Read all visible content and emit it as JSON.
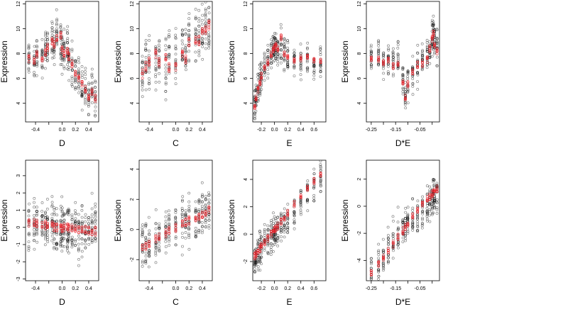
{
  "colors": {
    "observed": "#000000",
    "fitted": "#e8242c",
    "frame": "#000000"
  },
  "chart_data": [
    {
      "type": "scatter",
      "xlabel": "D",
      "ylabel": "Expression",
      "xlim": [
        -0.55,
        0.55
      ],
      "ylim": [
        2.5,
        12.2
      ],
      "xticks": [
        -0.4,
        -0.2,
        0.0,
        0.2,
        0.4
      ],
      "xtick_labels": [
        "-0.4",
        "",
        "0.0",
        "0.2",
        "0.4"
      ],
      "yticks": [
        4,
        6,
        8,
        10,
        12
      ],
      "ytick_labels": [
        "4",
        "6",
        "8",
        "10",
        "12"
      ],
      "x_levels": [
        -0.5,
        -0.42,
        -0.38,
        -0.3,
        -0.25,
        -0.22,
        -0.15,
        -0.12,
        -0.08,
        -0.02,
        0.0,
        0.03,
        0.08,
        0.1,
        0.15,
        0.2,
        0.25,
        0.3,
        0.35,
        0.4,
        0.45,
        0.5
      ],
      "y_centers": [
        7.5,
        7.3,
        8.0,
        7.6,
        8.2,
        8.8,
        9.2,
        8.6,
        9.4,
        8.8,
        8.4,
        8.2,
        8.6,
        7.6,
        7.0,
        6.4,
        6.2,
        5.4,
        5.0,
        4.2,
        5.2,
        4.6
      ],
      "y_spread": 1.1,
      "fitted_y": [
        7.6,
        7.4,
        7.9,
        7.5,
        8.1,
        8.5,
        9.0,
        8.7,
        9.3,
        9.5,
        8.3,
        8.0,
        8.3,
        7.8,
        7.2,
        6.4,
        6.0,
        5.5,
        5.1,
        4.5,
        4.9,
        4.4
      ]
    },
    {
      "type": "scatter",
      "xlabel": "C",
      "ylabel": "Expression",
      "xlim": [
        -0.55,
        0.55
      ],
      "ylim": [
        2.5,
        12.2
      ],
      "xticks": [
        -0.4,
        -0.2,
        0.0,
        0.2,
        0.4
      ],
      "xtick_labels": [
        "-0.4",
        "",
        "0.0",
        "0.2",
        "0.4"
      ],
      "yticks": [
        4,
        6,
        8,
        10,
        12
      ],
      "ytick_labels": [
        "4",
        "6",
        "8",
        "10",
        "12"
      ],
      "x_levels": [
        -0.5,
        -0.45,
        -0.4,
        -0.3,
        -0.25,
        -0.15,
        -0.1,
        0.0,
        0.1,
        0.15,
        0.2,
        0.3,
        0.35,
        0.4,
        0.45,
        0.5
      ],
      "y_centers": [
        6.6,
        7.0,
        7.2,
        7.4,
        7.6,
        7.0,
        8.0,
        7.6,
        8.2,
        7.8,
        8.8,
        9.0,
        9.2,
        9.6,
        9.8,
        10.2
      ],
      "y_spread": 1.6,
      "fitted_y": [
        6.4,
        6.9,
        7.4,
        8.0,
        7.2,
        7.6,
        6.8,
        7.0,
        8.0,
        7.6,
        8.9,
        9.2,
        9.0,
        9.8,
        10.0,
        10.3
      ]
    },
    {
      "type": "scatter",
      "xlabel": "E",
      "ylabel": "Expression",
      "xlim": [
        -0.33,
        0.78
      ],
      "ylim": [
        2.5,
        12.2
      ],
      "xticks": [
        -0.2,
        0.0,
        0.2,
        0.4,
        0.6
      ],
      "xtick_labels": [
        "-0.2",
        "0.0",
        "0.2",
        "0.4",
        "0.6"
      ],
      "yticks": [
        4,
        6,
        8,
        10,
        12
      ],
      "ytick_labels": [
        "4",
        "6",
        "8",
        "10",
        "12"
      ],
      "x_levels": [
        -0.3,
        -0.28,
        -0.25,
        -0.22,
        -0.2,
        -0.15,
        -0.1,
        -0.05,
        -0.02,
        0.0,
        0.02,
        0.05,
        0.1,
        0.15,
        0.2,
        0.3,
        0.4,
        0.5,
        0.6,
        0.7
      ],
      "y_centers": [
        3.8,
        4.6,
        5.2,
        5.8,
        6.3,
        6.9,
        7.4,
        8.0,
        8.4,
        8.6,
        8.7,
        8.4,
        8.8,
        8.0,
        7.8,
        7.4,
        7.2,
        7.5,
        7.2,
        7.4
      ],
      "y_spread": 0.9,
      "fitted_y": [
        3.7,
        4.4,
        5.1,
        5.7,
        6.2,
        6.8,
        7.3,
        7.9,
        8.3,
        8.5,
        8.7,
        8.4,
        9.3,
        8.0,
        7.7,
        7.4,
        7.6,
        7.7,
        7.4,
        7.5
      ]
    },
    {
      "type": "scatter",
      "xlabel": "D*E",
      "ylabel": "Expression",
      "xlim": [
        -0.27,
        0.03
      ],
      "ylim": [
        2.5,
        12.2
      ],
      "xticks": [
        -0.25,
        -0.2,
        -0.15,
        -0.1,
        -0.05,
        0.0
      ],
      "xtick_labels": [
        "-0.25",
        "",
        "-0.15",
        "",
        "-0.05",
        ""
      ],
      "yticks": [
        4,
        6,
        8,
        10,
        12
      ],
      "ytick_labels": [
        "4",
        "6",
        "8",
        "10",
        "12"
      ],
      "x_levels": [
        -0.25,
        -0.22,
        -0.2,
        -0.18,
        -0.16,
        -0.14,
        -0.12,
        -0.11,
        -0.1,
        -0.08,
        -0.06,
        -0.04,
        -0.02,
        -0.01,
        0.0,
        0.005,
        0.01,
        0.02
      ],
      "y_centers": [
        7.6,
        7.8,
        7.4,
        7.6,
        7.2,
        7.6,
        6.0,
        4.6,
        5.8,
        6.4,
        7.0,
        7.4,
        7.8,
        8.6,
        9.4,
        9.8,
        9.0,
        8.6
      ],
      "y_spread": 1.0,
      "fitted_y": [
        7.5,
        7.6,
        7.2,
        7.4,
        7.0,
        7.2,
        5.6,
        4.5,
        5.5,
        6.5,
        7.1,
        7.2,
        7.5,
        8.4,
        9.2,
        9.6,
        8.8,
        8.2
      ]
    },
    {
      "type": "scatter",
      "xlabel": "D",
      "ylabel": "Expression",
      "xlim": [
        -0.55,
        0.55
      ],
      "ylim": [
        -3.1,
        3.9
      ],
      "xticks": [
        -0.4,
        -0.2,
        0.0,
        0.2,
        0.4
      ],
      "xtick_labels": [
        "-0.4",
        "",
        "0.0",
        "0.2",
        "0.4"
      ],
      "yticks": [
        -3,
        -2,
        -1,
        0,
        1,
        2,
        3
      ],
      "ytick_labels": [
        "-3",
        "-2",
        "-1",
        "0",
        "1",
        "2",
        "3"
      ],
      "x_levels": [
        -0.5,
        -0.42,
        -0.38,
        -0.3,
        -0.25,
        -0.22,
        -0.15,
        -0.12,
        -0.08,
        -0.02,
        0.0,
        0.03,
        0.08,
        0.1,
        0.15,
        0.2,
        0.25,
        0.3,
        0.35,
        0.4,
        0.45,
        0.5
      ],
      "y_centers": [
        0.2,
        0.1,
        0.3,
        0.0,
        0.2,
        0.1,
        0.2,
        0.0,
        0.1,
        -0.1,
        0.0,
        0.1,
        -0.1,
        0.0,
        -0.2,
        -0.1,
        -0.3,
        0.0,
        -0.4,
        -0.2,
        0.0,
        -0.1
      ],
      "y_spread": 1.0,
      "fitted_y": [
        0.3,
        0.25,
        0.22,
        0.18,
        0.15,
        0.12,
        0.08,
        0.05,
        0.02,
        0.0,
        -0.02,
        -0.03,
        -0.05,
        -0.06,
        -0.08,
        -0.1,
        -0.12,
        -0.14,
        -0.16,
        -0.18,
        -0.2,
        -0.22
      ]
    },
    {
      "type": "scatter",
      "xlabel": "C",
      "ylabel": "Expression",
      "xlim": [
        -0.55,
        0.55
      ],
      "ylim": [
        -3.4,
        4.6
      ],
      "xticks": [
        -0.4,
        -0.2,
        0.0,
        0.2,
        0.4
      ],
      "xtick_labels": [
        "-0.4",
        "",
        "0.0",
        "0.2",
        "0.4"
      ],
      "yticks": [
        -2,
        0,
        2,
        4
      ],
      "ytick_labels": [
        "-2",
        "0",
        "2",
        "4"
      ],
      "x_levels": [
        -0.5,
        -0.45,
        -0.4,
        -0.3,
        -0.25,
        -0.15,
        -0.1,
        0.0,
        0.1,
        0.15,
        0.2,
        0.3,
        0.35,
        0.4,
        0.45,
        0.5
      ],
      "y_centers": [
        -1.2,
        -1.0,
        -0.8,
        -0.6,
        -0.4,
        -0.2,
        0.0,
        0.2,
        0.4,
        0.5,
        0.6,
        0.9,
        1.0,
        1.2,
        1.3,
        1.4
      ],
      "y_spread": 1.1,
      "fitted_y": [
        -1.2,
        -1.05,
        -0.9,
        -0.65,
        -0.5,
        -0.25,
        -0.12,
        0.1,
        0.35,
        0.45,
        0.6,
        0.8,
        0.9,
        1.0,
        1.1,
        1.25
      ]
    },
    {
      "type": "scatter",
      "xlabel": "E",
      "ylabel": "Expression",
      "xlim": [
        -0.33,
        0.78
      ],
      "ylim": [
        -3.4,
        5.4
      ],
      "xticks": [
        -0.2,
        0.0,
        0.2,
        0.4,
        0.6
      ],
      "xtick_labels": [
        "-0.2",
        "0.0",
        "0.2",
        "0.4",
        "0.6"
      ],
      "yticks": [
        -2,
        0,
        2,
        4
      ],
      "ytick_labels": [
        "-2",
        "0",
        "2",
        "4"
      ],
      "x_levels": [
        -0.3,
        -0.28,
        -0.25,
        -0.22,
        -0.2,
        -0.15,
        -0.1,
        -0.05,
        -0.02,
        0.0,
        0.02,
        0.05,
        0.1,
        0.15,
        0.2,
        0.3,
        0.4,
        0.5,
        0.6,
        0.7
      ],
      "y_centers": [
        -2.2,
        -1.6,
        -1.4,
        -1.0,
        -0.8,
        -0.6,
        -0.4,
        -0.2,
        0.0,
        0.1,
        0.2,
        0.3,
        0.6,
        0.9,
        1.2,
        1.8,
        2.4,
        3.0,
        3.6,
        4.2
      ],
      "y_spread": 0.9,
      "fitted_y": [
        -1.6,
        -1.45,
        -1.25,
        -1.05,
        -0.9,
        -0.6,
        -0.3,
        0.0,
        0.2,
        0.3,
        0.45,
        0.6,
        0.95,
        1.25,
        1.55,
        2.15,
        2.75,
        3.35,
        3.9,
        4.4
      ]
    },
    {
      "type": "scatter",
      "xlabel": "D*E",
      "ylabel": "Expression",
      "xlim": [
        -0.27,
        0.03
      ],
      "ylim": [
        -5.5,
        3.4
      ],
      "xticks": [
        -0.25,
        -0.2,
        -0.15,
        -0.1,
        -0.05,
        0.0
      ],
      "xtick_labels": [
        "-0.25",
        "",
        "-0.15",
        "",
        "-0.05",
        ""
      ],
      "yticks": [
        -4,
        -2,
        0,
        2
      ],
      "ytick_labels": [
        "-4",
        "-2",
        "0",
        "2"
      ],
      "x_levels": [
        -0.25,
        -0.22,
        -0.2,
        -0.18,
        -0.16,
        -0.14,
        -0.12,
        -0.11,
        -0.1,
        -0.08,
        -0.06,
        -0.04,
        -0.02,
        -0.01,
        0.0,
        0.005,
        0.01,
        0.02
      ],
      "y_centers": [
        -5.0,
        -4.4,
        -3.6,
        -3.0,
        -2.6,
        -2.0,
        -1.8,
        -1.4,
        -1.2,
        -0.8,
        -0.6,
        -0.4,
        0.0,
        0.3,
        0.5,
        0.8,
        0.6,
        0.9
      ],
      "y_spread": 1.0,
      "fitted_y": [
        -5.0,
        -4.3,
        -3.8,
        -3.3,
        -2.8,
        -2.3,
        -1.8,
        -1.55,
        -1.3,
        -0.8,
        -0.35,
        0.1,
        0.5,
        0.7,
        0.9,
        1.0,
        1.1,
        1.3
      ]
    }
  ]
}
